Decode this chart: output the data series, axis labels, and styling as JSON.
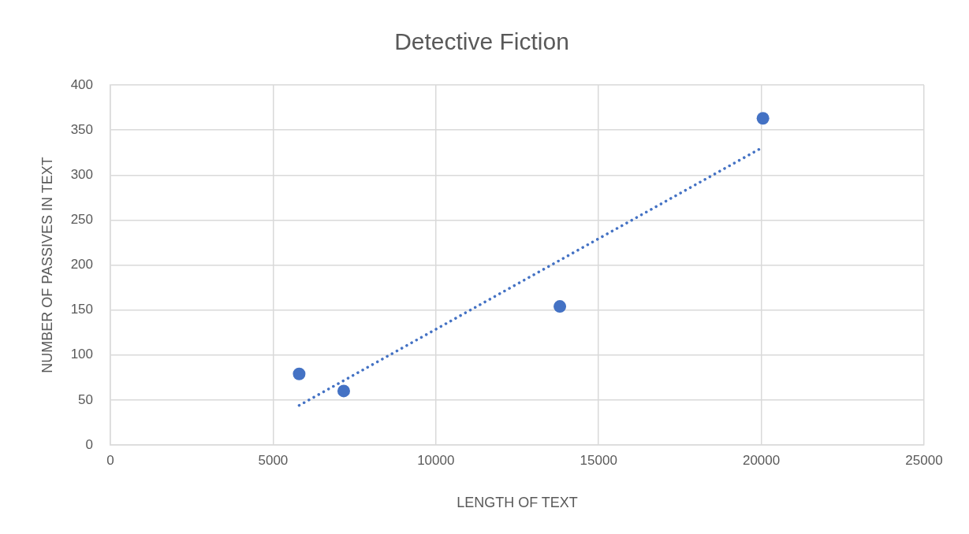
{
  "chart_data": {
    "type": "scatter",
    "title": "Detective Fiction",
    "xlabel": "LENGTH OF TEXT",
    "ylabel": "NUMBER OF PASSIVES IN TEXT",
    "xlim": [
      0,
      25000
    ],
    "xticks": [
      0,
      5000,
      10000,
      15000,
      20000,
      25000
    ],
    "ylim": [
      0,
      400
    ],
    "yticks": [
      0,
      50,
      100,
      150,
      200,
      250,
      300,
      350,
      400
    ],
    "grid": true,
    "marker": "circle",
    "series": [
      {
        "color": "#4472c4",
        "x": [
          5800,
          7170,
          13810,
          20050
        ],
        "values": [
          79,
          60,
          154,
          363
        ]
      },
      {
        "type": "line",
        "color": "#4472c4",
        "x": [
          5800,
          20050
        ],
        "values": [
          44,
          331
        ],
        "line_style": "dotted",
        "marker": "none"
      }
    ]
  }
}
